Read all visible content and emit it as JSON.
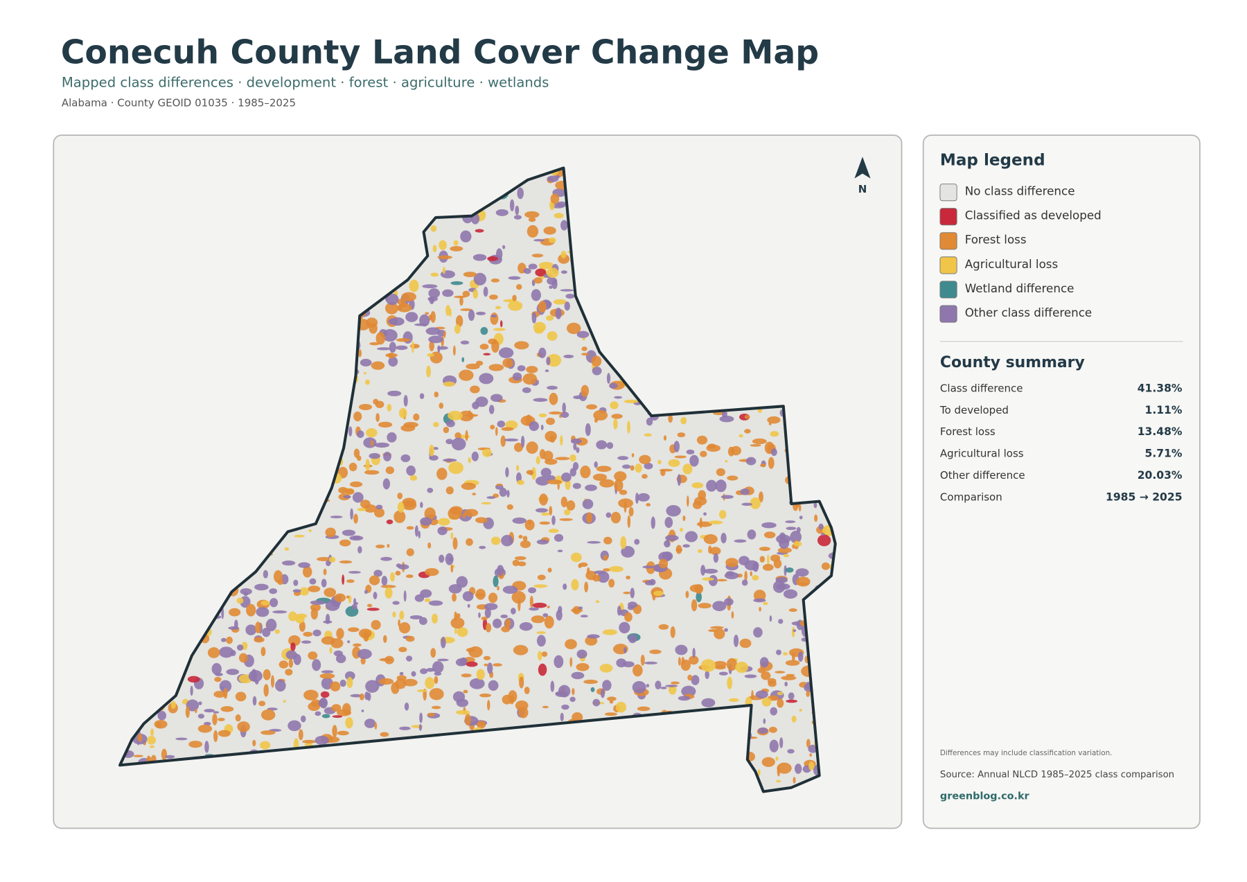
{
  "header": {
    "title": "Conecuh County Land Cover Change Map",
    "subtitle": "Mapped class differences · development · forest · agriculture · wetlands",
    "meta": "Alabama · County GEOID 01035 · 1985–2025"
  },
  "north": "N",
  "legend": {
    "title": "Map legend",
    "items": [
      {
        "label": "No class difference",
        "color": "#e4e4e0"
      },
      {
        "label": "Classified as developed",
        "color": "#c8283a"
      },
      {
        "label": "Forest loss",
        "color": "#e08a35"
      },
      {
        "label": "Agricultural loss",
        "color": "#f0c548"
      },
      {
        "label": "Wetland difference",
        "color": "#3e8a8e"
      },
      {
        "label": "Other class difference",
        "color": "#8f77ad"
      }
    ]
  },
  "summary": {
    "title": "County summary",
    "rows": [
      [
        "Class difference",
        "41.38%"
      ],
      [
        "To developed",
        "1.11%"
      ],
      [
        "Forest loss",
        "13.48%"
      ],
      [
        "Agricultural loss",
        "5.71%"
      ],
      [
        "Other difference",
        "20.03%"
      ],
      [
        "Comparison",
        "1985 → 2025"
      ]
    ]
  },
  "notes": {
    "caveat": "Differences may include classification variation.",
    "source": "Source: Annual NLCD 1985–2025 class comparison",
    "credit": "greenblog.co.kr"
  }
}
